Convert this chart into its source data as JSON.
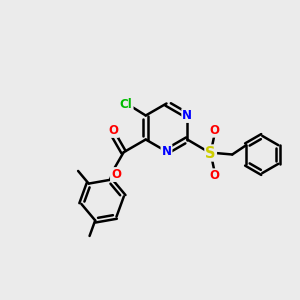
{
  "bg_color": "#ebebeb",
  "bond_color": "#000000",
  "bond_width": 1.8,
  "atom_colors": {
    "N": "#0000ff",
    "O": "#ff0000",
    "Cl": "#00bb00",
    "S": "#cccc00",
    "C": "#000000"
  },
  "font_size": 8.5,
  "fig_w": 3.0,
  "fig_h": 3.0,
  "dpi": 100
}
